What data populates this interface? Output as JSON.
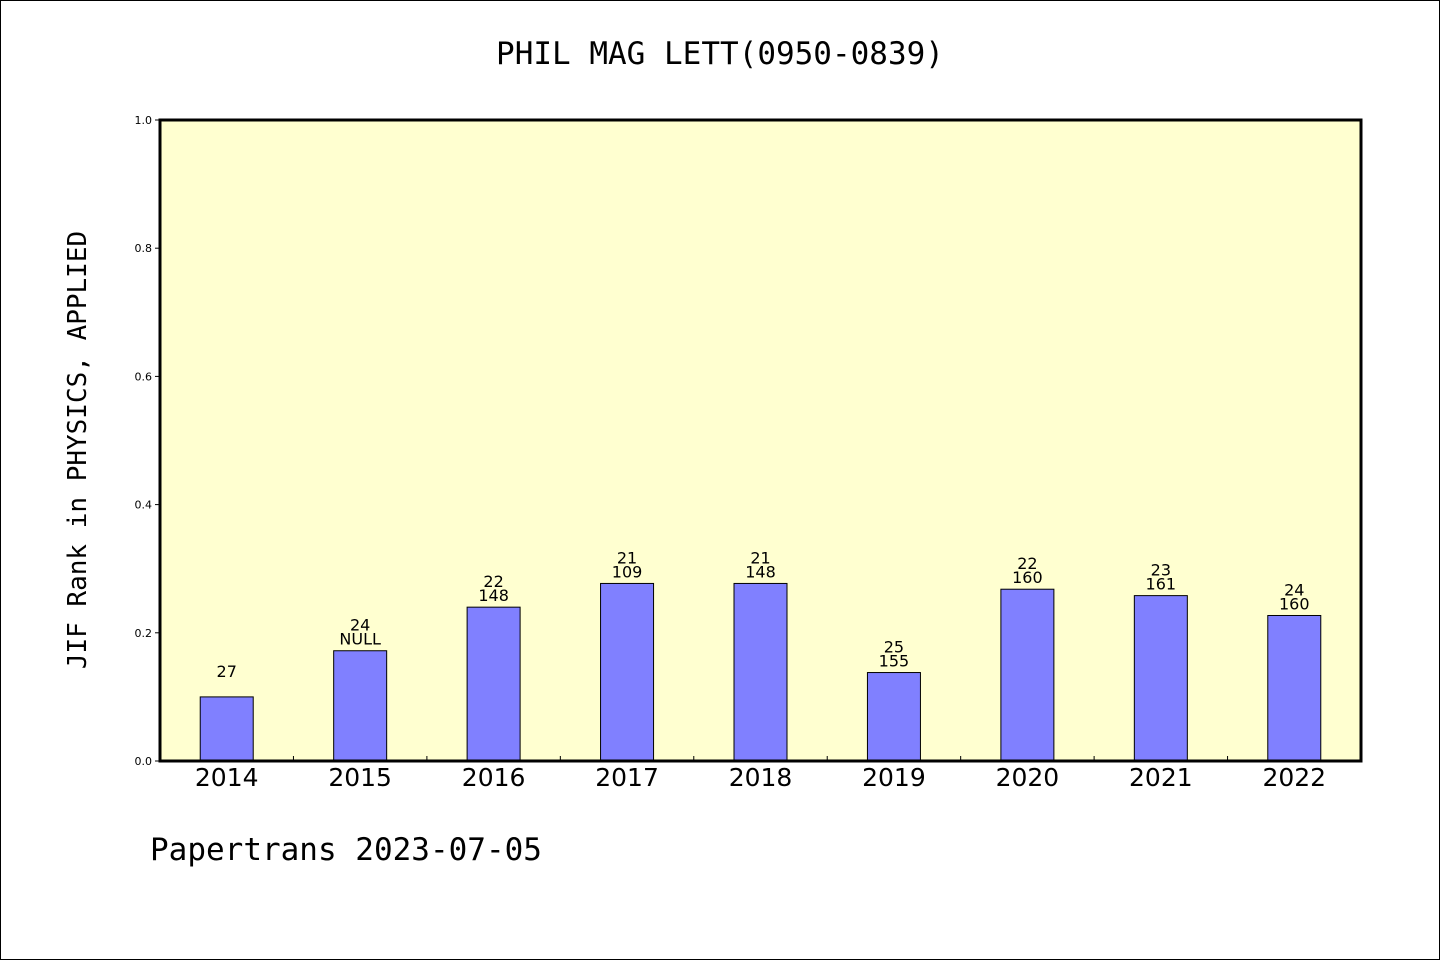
{
  "chart_data": {
    "type": "bar",
    "title": "PHIL MAG LETT(0950-0839)",
    "ylabel": "JIF Rank in PHYSICS, APPLIED",
    "xlabel": "",
    "ylim": [
      0,
      1.0
    ],
    "yticks": [
      "0.0",
      "0.2",
      "0.4",
      "0.6",
      "0.8",
      "1.0"
    ],
    "categories": [
      "2014",
      "2015",
      "2016",
      "2017",
      "2018",
      "2019",
      "2020",
      "2021",
      "2022"
    ],
    "values": [
      0.1,
      0.172,
      0.24,
      0.277,
      0.277,
      0.138,
      0.268,
      0.258,
      0.227
    ],
    "label_top": [
      "",
      "24",
      "22",
      "21",
      "21",
      "25",
      "22",
      "23",
      "24"
    ],
    "label_bottom": [
      "27",
      "NULL",
      "148",
      "109",
      "148",
      "155",
      "160",
      "161",
      "160"
    ],
    "plot_background": "#ffffd0",
    "bar_color": "#8080ff",
    "grid": false
  },
  "footer": "Papertrans 2023-07-05"
}
